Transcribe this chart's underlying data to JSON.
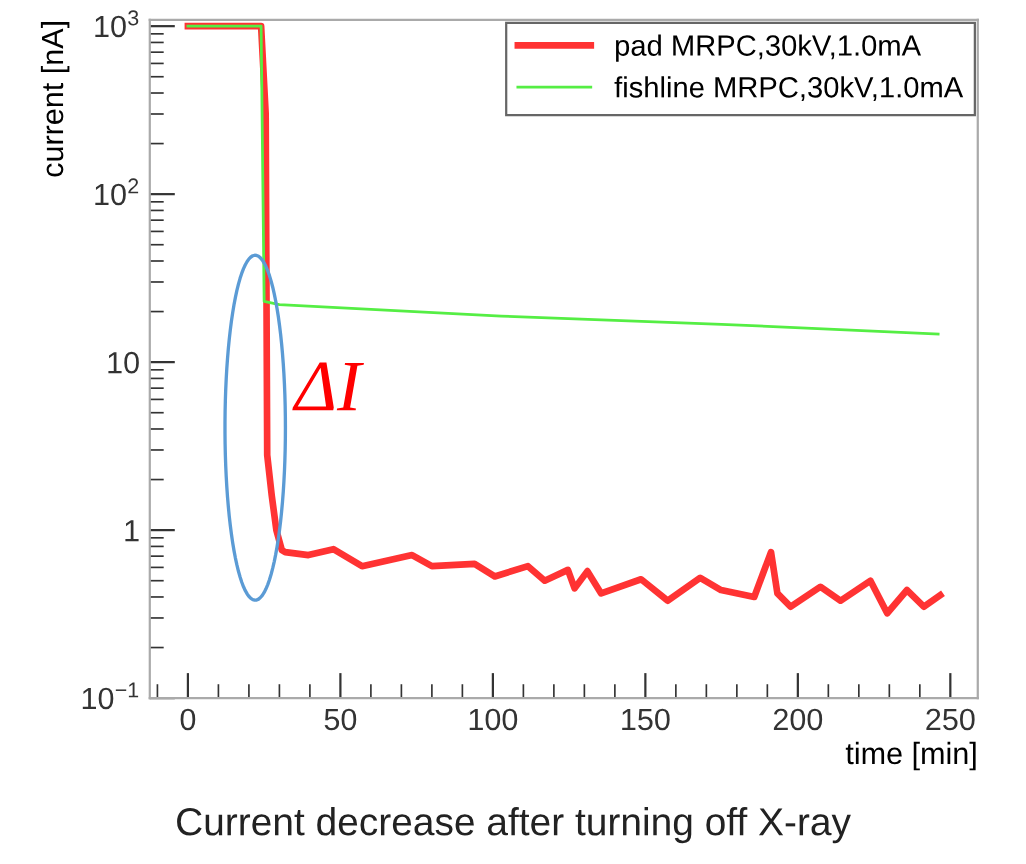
{
  "chart_data": {
    "type": "line",
    "ylabel": "current [nA]",
    "xlabel": "time [min]",
    "xlim": [
      -12.5,
      259
    ],
    "xticks": [
      0,
      50,
      100,
      150,
      200,
      250
    ],
    "ylim": [
      0.1,
      1090
    ],
    "yticks": [
      {
        "value": 0.1,
        "label": "10$^{−1}$"
      },
      1,
      10,
      {
        "value": 100,
        "label": "10$^{2}$"
      },
      {
        "value": 1000,
        "label": "10$^{3}$"
      }
    ],
    "log": "y",
    "grid": false,
    "legend": "top right",
    "marker": "none",
    "line_style": "solid",
    "series": [
      {
        "name": "pad MRPC,30kV,1.0mA",
        "color": "#ff3333",
        "x": [
          0,
          24,
          25.5,
          26,
          27.5,
          29,
          30.8,
          31.9,
          39.5,
          47.7,
          57.1,
          73.5,
          80,
          94,
          100.6,
          111.5,
          117,
          124.6,
          126.8,
          131,
          135.5,
          148.6,
          157.3,
          168,
          174.8,
          185.7,
          191.2,
          193.3,
          197.6,
          207.4,
          214,
          223.8,
          229.3,
          235.8,
          241.3,
          246.7
        ],
        "values": [
          1000,
          1000,
          300,
          2.8,
          1.6,
          1.0,
          0.76,
          0.74,
          0.71,
          0.77,
          0.61,
          0.71,
          0.61,
          0.63,
          0.53,
          0.61,
          0.5,
          0.58,
          0.45,
          0.57,
          0.42,
          0.51,
          0.38,
          0.52,
          0.44,
          0.4,
          0.74,
          0.42,
          0.35,
          0.46,
          0.38,
          0.5,
          0.32,
          0.44,
          0.35,
          0.41
        ]
      },
      {
        "name": "fishline MRPC,30kV,1.0mA",
        "color": "#55ee44",
        "x": [
          0,
          24,
          25,
          30,
          102.7,
          175,
          246
        ],
        "values": [
          1000,
          1000,
          23,
          22,
          18.8,
          16.8,
          14.7
        ]
      }
    ],
    "annotations": [
      "ΔI",
      "Current decrease after turning off X-ray"
    ]
  }
}
